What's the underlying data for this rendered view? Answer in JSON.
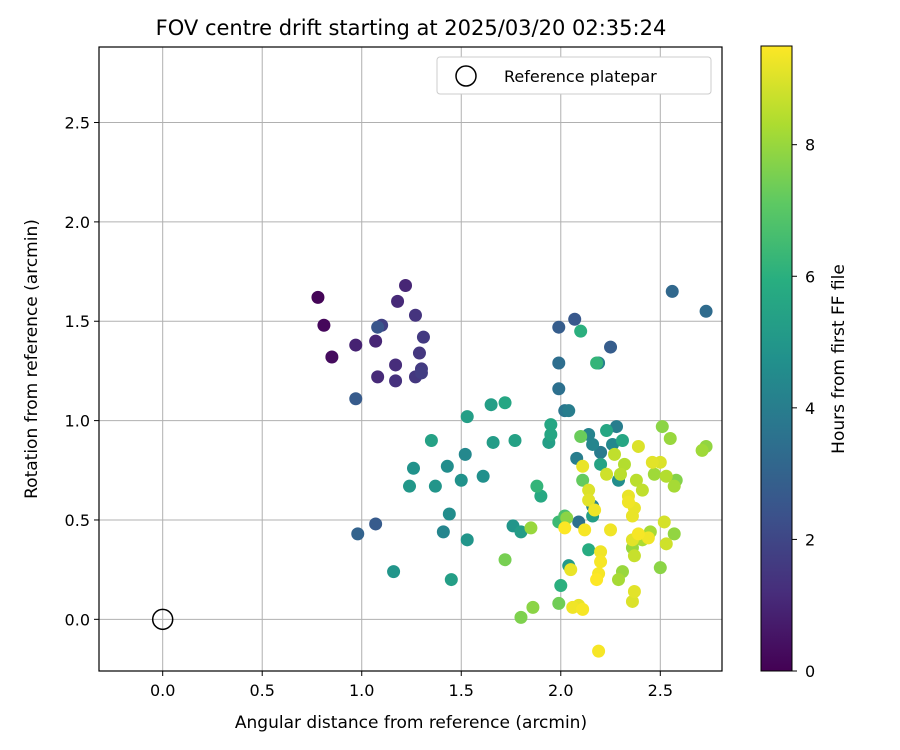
{
  "chart_data": {
    "type": "scatter",
    "title": "FOV centre drift starting at 2025/03/20 02:35:24",
    "xlabel": "Angular distance from reference (arcmin)",
    "ylabel": "Rotation from reference (arcmin)",
    "xlim": [
      -0.32,
      2.81
    ],
    "ylim": [
      -0.26,
      2.88
    ],
    "xticks": [
      0.0,
      0.5,
      1.0,
      1.5,
      2.0,
      2.5
    ],
    "xtick_labels": [
      "0.0",
      "0.5",
      "1.0",
      "1.5",
      "2.0",
      "2.5"
    ],
    "yticks": [
      0.0,
      0.5,
      1.0,
      1.5,
      2.0,
      2.5
    ],
    "ytick_labels": [
      "0.0",
      "0.5",
      "1.0",
      "1.5",
      "2.0",
      "2.5"
    ],
    "grid": true,
    "legend": {
      "position": "top-right",
      "entries": [
        "Reference platepar"
      ]
    },
    "colorbar": {
      "label": "Hours from first FF file",
      "range": [
        0,
        9.5
      ],
      "ticks": [
        0,
        2,
        4,
        6,
        8
      ],
      "tick_labels": [
        "0",
        "2",
        "4",
        "6",
        "8"
      ],
      "colormap": "viridis"
    },
    "reference": {
      "name": "Reference platepar",
      "x": 0.0,
      "y": 0.0
    },
    "points": [
      [
        0.78,
        1.62,
        0.1
      ],
      [
        0.81,
        1.48,
        0.2
      ],
      [
        0.85,
        1.32,
        0.3
      ],
      [
        0.97,
        1.38,
        0.9
      ],
      [
        1.07,
        1.4,
        1.0
      ],
      [
        1.08,
        1.22,
        1.1
      ],
      [
        1.17,
        1.28,
        1.2
      ],
      [
        1.17,
        1.2,
        1.3
      ],
      [
        1.18,
        1.6,
        1.1
      ],
      [
        1.22,
        1.68,
        1.0
      ],
      [
        1.27,
        1.53,
        1.4
      ],
      [
        1.27,
        1.22,
        1.5
      ],
      [
        1.29,
        1.34,
        1.5
      ],
      [
        1.3,
        1.26,
        1.6
      ],
      [
        1.3,
        1.24,
        1.7
      ],
      [
        1.31,
        1.42,
        1.6
      ],
      [
        1.08,
        1.47,
        2.5
      ],
      [
        1.1,
        1.48,
        1.8
      ],
      [
        0.97,
        1.11,
        2.7
      ],
      [
        0.98,
        0.43,
        3.0
      ],
      [
        1.07,
        0.48,
        2.7
      ],
      [
        1.99,
        1.47,
        2.8
      ],
      [
        2.07,
        1.51,
        2.6
      ],
      [
        2.25,
        1.37,
        2.8
      ],
      [
        2.56,
        1.65,
        3.2
      ],
      [
        2.73,
        1.55,
        3.3
      ],
      [
        1.99,
        1.29,
        3.4
      ],
      [
        1.99,
        1.16,
        3.5
      ],
      [
        2.02,
        1.05,
        3.7
      ],
      [
        2.04,
        1.05,
        4.0
      ],
      [
        2.19,
        1.29,
        4.1
      ],
      [
        2.2,
        0.84,
        3.9
      ],
      [
        2.08,
        0.81,
        4.0
      ],
      [
        2.14,
        0.93,
        4.2
      ],
      [
        2.16,
        0.88,
        4.3
      ],
      [
        2.26,
        0.88,
        4.4
      ],
      [
        2.28,
        0.97,
        4.0
      ],
      [
        2.29,
        0.7,
        4.6
      ],
      [
        2.09,
        0.49,
        3.5
      ],
      [
        2.16,
        0.57,
        4.2
      ],
      [
        1.53,
        1.02,
        5.3
      ],
      [
        1.65,
        1.08,
        5.3
      ],
      [
        1.72,
        1.09,
        5.6
      ],
      [
        1.66,
        0.89,
        5.2
      ],
      [
        1.77,
        0.9,
        5.4
      ],
      [
        1.94,
        0.89,
        5.3
      ],
      [
        1.95,
        0.93,
        5.6
      ],
      [
        1.95,
        0.98,
        5.6
      ],
      [
        1.76,
        0.47,
        4.9
      ],
      [
        1.8,
        0.44,
        5.2
      ],
      [
        1.9,
        0.62,
        5.7
      ],
      [
        1.88,
        0.67,
        6.2
      ],
      [
        1.24,
        0.67,
        5.0
      ],
      [
        1.26,
        0.76,
        4.8
      ],
      [
        1.35,
        0.9,
        5.4
      ],
      [
        1.37,
        0.67,
        4.9
      ],
      [
        1.43,
        0.77,
        4.6
      ],
      [
        1.44,
        0.53,
        4.6
      ],
      [
        1.41,
        0.44,
        4.3
      ],
      [
        1.5,
        0.7,
        4.8
      ],
      [
        1.52,
        0.83,
        4.4
      ],
      [
        1.53,
        0.4,
        4.9
      ],
      [
        1.61,
        0.72,
        4.7
      ],
      [
        1.16,
        0.24,
        4.9
      ],
      [
        1.45,
        0.2,
        5.3
      ],
      [
        2.04,
        0.27,
        5.1
      ],
      [
        2.16,
        0.52,
        5.3
      ],
      [
        2.2,
        0.78,
        5.5
      ],
      [
        2.23,
        0.95,
        5.6
      ],
      [
        2.14,
        0.35,
        5.8
      ],
      [
        2.31,
        0.9,
        5.6
      ],
      [
        2.1,
        1.45,
        6.0
      ],
      [
        2.18,
        1.29,
        6.2
      ],
      [
        2.0,
        0.17,
        6.0
      ],
      [
        1.99,
        0.49,
        6.4
      ],
      [
        2.02,
        0.52,
        6.7
      ],
      [
        2.1,
        0.92,
        7.3
      ],
      [
        2.11,
        0.7,
        7.2
      ],
      [
        1.72,
        0.3,
        7.5
      ],
      [
        1.8,
        0.01,
        7.6
      ],
      [
        1.85,
        0.46,
        8.0
      ],
      [
        1.86,
        0.06,
        7.8
      ],
      [
        1.99,
        0.08,
        7.4
      ],
      [
        2.03,
        0.51,
        7.8
      ],
      [
        2.29,
        0.2,
        8.2
      ],
      [
        2.31,
        0.24,
        8.0
      ],
      [
        2.36,
        0.36,
        8.0
      ],
      [
        2.37,
        0.4,
        8.1
      ],
      [
        2.41,
        0.4,
        8.3
      ],
      [
        2.45,
        0.44,
        8.2
      ],
      [
        2.47,
        0.73,
        8.1
      ],
      [
        2.5,
        0.26,
        7.8
      ],
      [
        2.51,
        0.97,
        7.8
      ],
      [
        2.55,
        0.91,
        8.0
      ],
      [
        2.57,
        0.67,
        8.2
      ],
      [
        2.57,
        0.43,
        7.9
      ],
      [
        2.58,
        0.7,
        7.7
      ],
      [
        2.71,
        0.85,
        8.1
      ],
      [
        2.73,
        0.87,
        7.9
      ],
      [
        2.38,
        0.7,
        8.5
      ],
      [
        2.41,
        0.65,
        8.6
      ],
      [
        2.32,
        0.78,
        8.4
      ],
      [
        2.3,
        0.73,
        8.5
      ],
      [
        2.27,
        0.83,
        8.6
      ],
      [
        2.53,
        0.72,
        8.4
      ],
      [
        2.53,
        0.38,
        8.8
      ],
      [
        2.52,
        0.49,
        8.9
      ],
      [
        2.5,
        0.79,
        9.0
      ],
      [
        2.46,
        0.79,
        9.1
      ],
      [
        2.39,
        0.87,
        9.0
      ],
      [
        2.36,
        0.4,
        9.1
      ],
      [
        2.36,
        0.52,
        9.2
      ],
      [
        2.37,
        0.56,
        9.2
      ],
      [
        2.34,
        0.59,
        9.3
      ],
      [
        2.34,
        0.62,
        9.2
      ],
      [
        2.39,
        0.43,
        9.4
      ],
      [
        2.44,
        0.41,
        9.3
      ],
      [
        2.37,
        0.14,
        9.1
      ],
      [
        2.36,
        0.09,
        9.0
      ],
      [
        2.37,
        0.32,
        8.7
      ],
      [
        2.23,
        0.73,
        8.8
      ],
      [
        2.25,
        0.45,
        9.3
      ],
      [
        2.2,
        0.34,
        9.3
      ],
      [
        2.19,
        0.23,
        9.4
      ],
      [
        2.18,
        0.2,
        9.5
      ],
      [
        2.2,
        0.29,
        9.4
      ],
      [
        2.17,
        0.55,
        9.3
      ],
      [
        2.14,
        0.65,
        9.0
      ],
      [
        2.14,
        0.6,
        9.1
      ],
      [
        2.11,
        0.77,
        9.2
      ],
      [
        2.12,
        0.45,
        9.4
      ],
      [
        2.09,
        0.07,
        9.2
      ],
      [
        2.11,
        0.05,
        9.4
      ],
      [
        2.06,
        0.06,
        9.3
      ],
      [
        2.05,
        0.25,
        9.2
      ],
      [
        2.02,
        0.46,
        9.5
      ],
      [
        2.19,
        -0.16,
        9.4
      ]
    ]
  }
}
